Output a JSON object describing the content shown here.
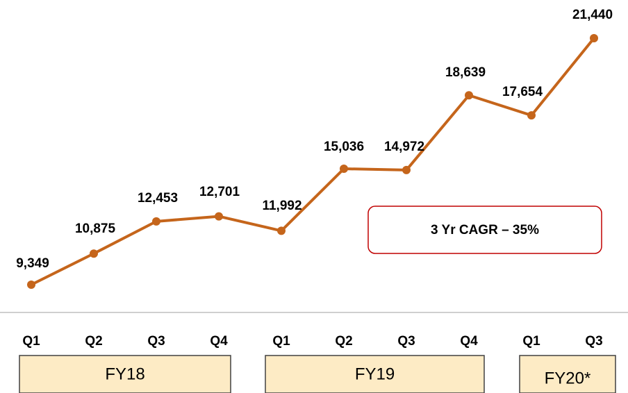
{
  "chart_data": {
    "type": "line",
    "categories": [
      "Q1",
      "Q2",
      "Q3",
      "Q4",
      "Q1",
      "Q2",
      "Q3",
      "Q4",
      "Q1",
      "Q3"
    ],
    "values": [
      9349,
      10875,
      12453,
      12701,
      11992,
      15036,
      14972,
      18639,
      17654,
      21440
    ],
    "value_labels": [
      "9,349",
      "10,875",
      "12,453",
      "12,701",
      "11,992",
      "15,036",
      "14,972",
      "18,639",
      "17,654",
      "21,440"
    ],
    "color": "#c5651b",
    "groups": [
      "FY18",
      "FY19",
      "FY20*"
    ],
    "annotation": "3 Yr CAGR – 35%"
  }
}
